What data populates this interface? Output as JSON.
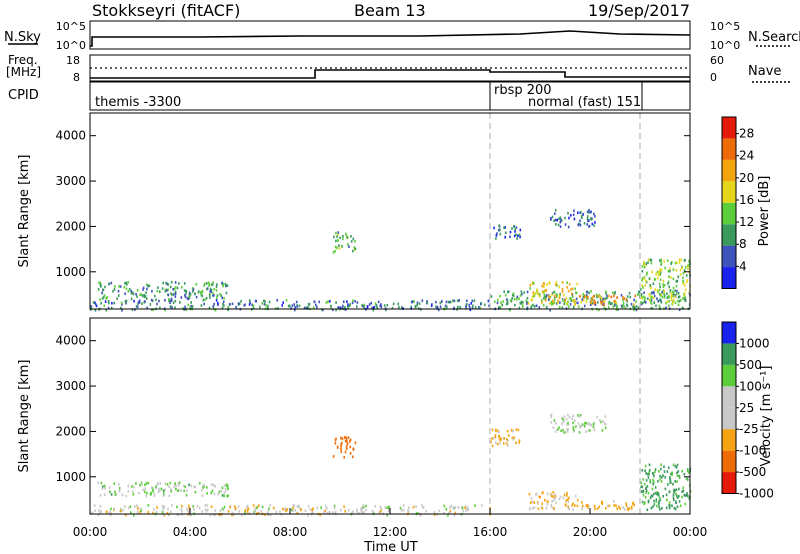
{
  "header": {
    "station": "Stokkseyri (fitACF)",
    "beam": "Beam 13",
    "date": "19/Sep/2017"
  },
  "nsky": {
    "label": "N.Sky",
    "left_top": "10^5",
    "left_bottom": "10^0",
    "right_top": "10^5",
    "right_bottom": "10^0",
    "right_label": "N.Search"
  },
  "freq": {
    "label_line1": "Freq.",
    "label_line2": "[MHz]",
    "left_top": "18",
    "left_bottom": "8",
    "right_top": "60",
    "right_bottom": "0",
    "right_label": "Nave"
  },
  "cpid": {
    "label": "CPID",
    "modes": [
      {
        "name": "themis -3300",
        "start_hr": 0,
        "end_hr": 16
      },
      {
        "name": "rbsp 200",
        "start_hr": 16,
        "end_hr": 22
      },
      {
        "name": "normal (fast) 151",
        "start_hr": 16,
        "end_hr": 22
      }
    ]
  },
  "chart_data": [
    {
      "type": "heatmap",
      "title": "",
      "xlabel": "",
      "ylabel": "Slant Range [km]",
      "xlim": [
        "00:00",
        "00:00"
      ],
      "ylim": [
        180,
        4500
      ],
      "y_ticks": [
        "1000",
        "2000",
        "3000",
        "4000"
      ],
      "mode_change_lines_hr": [
        16,
        22
      ],
      "colorbar": {
        "label": "Power [dB]",
        "ticks": [
          "4",
          "8",
          "12",
          "16",
          "20",
          "24",
          "28"
        ],
        "range": [
          0,
          31
        ],
        "colors": [
          "#1a22ee",
          "#3f53bd",
          "#3a9a5e",
          "#5ccd3a",
          "#e6d61b",
          "#f2a40d",
          "#ee6c08",
          "#e51a0a"
        ]
      },
      "data_note": "returns concentrated below 1000 km 00-16 UT; patches near 1500-1900 km around 10 UT; 1600-2400 km 16-21 UT",
      "echo_regions": [
        {
          "x0_hr": 0.0,
          "x1_hr": 16.0,
          "y0_km": 180,
          "y1_km": 400,
          "power_db": 8
        },
        {
          "x0_hr": 0.3,
          "x1_hr": 5.5,
          "y0_km": 400,
          "y1_km": 800,
          "power_db": 10
        },
        {
          "x0_hr": 9.7,
          "x1_hr": 10.6,
          "y0_km": 1450,
          "y1_km": 1900,
          "power_db": 12
        },
        {
          "x0_hr": 16.0,
          "x1_hr": 17.2,
          "y0_km": 1750,
          "y1_km": 2050,
          "power_db": 6
        },
        {
          "x0_hr": 18.4,
          "x1_hr": 20.2,
          "y0_km": 2000,
          "y1_km": 2400,
          "power_db": 6
        },
        {
          "x0_hr": 16.0,
          "x1_hr": 24.0,
          "y0_km": 180,
          "y1_km": 600,
          "power_db": 10
        },
        {
          "x0_hr": 17.5,
          "x1_hr": 19.5,
          "y0_km": 300,
          "y1_km": 800,
          "power_db": 18
        },
        {
          "x0_hr": 19.5,
          "x1_hr": 21.8,
          "y0_km": 300,
          "y1_km": 500,
          "power_db": 22
        },
        {
          "x0_hr": 22.0,
          "x1_hr": 24.0,
          "y0_km": 300,
          "y1_km": 1300,
          "power_db": 14
        }
      ]
    },
    {
      "type": "heatmap",
      "title": "",
      "xlabel": "Time UT",
      "ylabel": "Slant Range [km]",
      "xlim": [
        "00:00",
        "00:00"
      ],
      "x_ticks": [
        "00:00",
        "04:00",
        "08:00",
        "12:00",
        "16:00",
        "20:00",
        "00:00"
      ],
      "ylim": [
        180,
        4500
      ],
      "y_ticks": [
        "1000",
        "2000",
        "3000",
        "4000"
      ],
      "mode_change_lines_hr": [
        16,
        22
      ],
      "colorbar": {
        "label": "Velocity [m s⁻¹]",
        "ticks": [
          "1000",
          "500",
          "100",
          "25",
          "-25",
          "-100",
          "-500",
          "-1000"
        ],
        "range": [
          -1200,
          1200
        ],
        "colors": [
          "#e51a0a",
          "#ee6c08",
          "#f5a312",
          "#c8c8c8",
          "#c8c8c8",
          "#5ccd3a",
          "#3a9a5e",
          "#1a22ee"
        ]
      },
      "data_note": "mostly low velocities (grey) with negative (orange) near the ground-scatter band; negative patch near 1500-1900 km around 10 UT",
      "echo_regions": [
        {
          "x0_hr": 0.0,
          "x1_hr": 16.0,
          "y0_km": 180,
          "y1_km": 400,
          "velocity": -50
        },
        {
          "x0_hr": 0.3,
          "x1_hr": 5.5,
          "y0_km": 600,
          "y1_km": 900,
          "velocity": 10
        },
        {
          "x0_hr": 9.7,
          "x1_hr": 10.6,
          "y0_km": 1450,
          "y1_km": 1900,
          "velocity": -600
        },
        {
          "x0_hr": 16.0,
          "x1_hr": 17.2,
          "y0_km": 1700,
          "y1_km": 2100,
          "velocity": -150
        },
        {
          "x0_hr": 18.4,
          "x1_hr": 20.6,
          "y0_km": 2000,
          "y1_km": 2400,
          "velocity": 0
        },
        {
          "x0_hr": 17.5,
          "x1_hr": 19.5,
          "y0_km": 300,
          "y1_km": 700,
          "velocity": -120
        },
        {
          "x0_hr": 19.5,
          "x1_hr": 21.8,
          "y0_km": 300,
          "y1_km": 500,
          "velocity": -150
        },
        {
          "x0_hr": 22.0,
          "x1_hr": 24.0,
          "y0_km": 300,
          "y1_km": 1300,
          "velocity": 150
        }
      ]
    }
  ]
}
